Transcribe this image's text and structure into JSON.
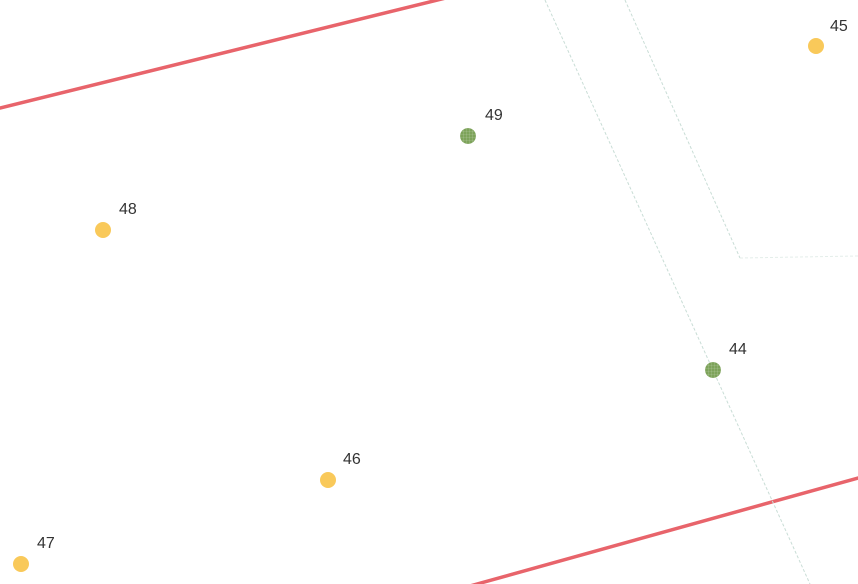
{
  "map": {
    "colors": {
      "background": "#ffffff",
      "boundary_line": "#e8646b",
      "street_line": "#c9ddd6",
      "marker_available": "#f9c95a",
      "marker_selected": "#7da35a"
    },
    "markers": [
      {
        "id": "45",
        "label": "45",
        "status": "yellow"
      },
      {
        "id": "49",
        "label": "49",
        "status": "green"
      },
      {
        "id": "48",
        "label": "48",
        "status": "yellow"
      },
      {
        "id": "44",
        "label": "44",
        "status": "green"
      },
      {
        "id": "46",
        "label": "46",
        "status": "yellow"
      },
      {
        "id": "47",
        "label": "47",
        "status": "yellow"
      }
    ]
  }
}
